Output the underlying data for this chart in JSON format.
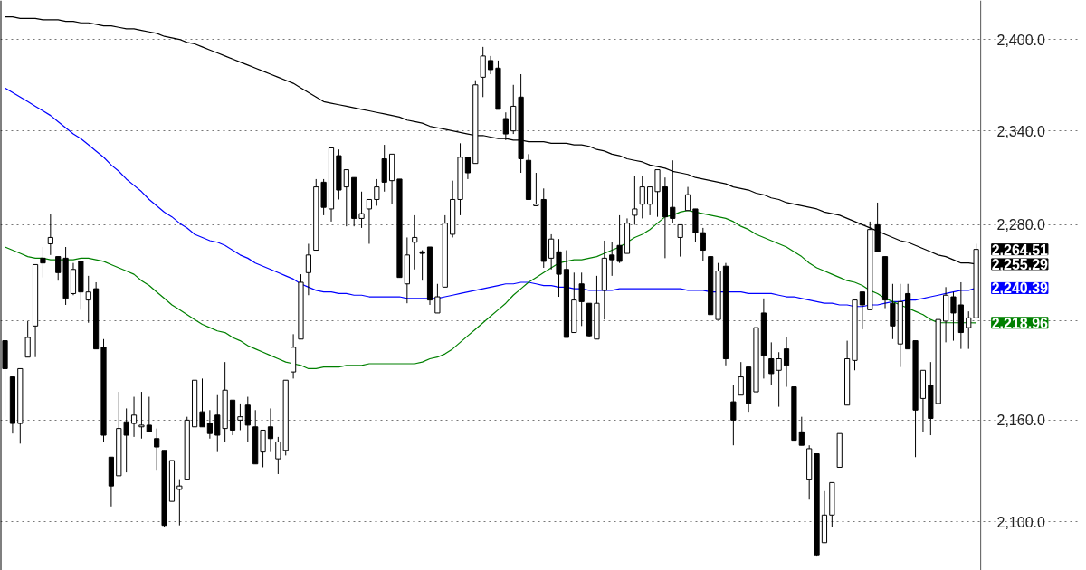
{
  "chart_data": {
    "type": "candlestick",
    "categories": [
      null,
      null,
      null,
      null,
      null,
      null,
      null,
      null,
      null,
      null,
      null,
      null,
      null,
      null,
      null,
      null,
      null,
      null,
      null,
      null,
      null,
      null,
      null,
      null,
      null,
      null,
      null,
      null,
      null,
      null,
      null,
      null,
      null,
      null,
      null,
      null,
      null,
      null,
      null,
      null,
      null,
      null,
      null,
      null,
      null,
      null,
      null,
      null,
      null,
      null,
      null,
      null,
      null,
      null,
      null,
      null,
      null,
      null,
      null,
      null,
      null,
      null,
      null,
      null,
      null,
      null,
      null,
      null,
      null,
      null,
      null,
      null,
      null,
      null,
      null,
      null,
      null,
      null,
      null,
      null,
      null,
      null,
      null,
      null,
      null,
      null,
      null,
      null,
      null,
      null,
      null,
      null,
      null,
      null,
      null,
      null,
      null,
      null,
      null,
      null,
      null,
      null,
      null,
      null,
      null,
      null,
      null,
      null,
      null,
      null,
      null,
      null,
      null,
      null,
      null,
      null,
      null,
      null,
      null,
      null,
      null,
      null,
      null,
      null,
      null,
      null,
      null,
      null,
      null
    ],
    "ohlc": [
      [
        2208,
        2208,
        2162,
        2191
      ],
      [
        2186,
        2186,
        2152,
        2158
      ],
      [
        2158,
        2191,
        2146,
        2191
      ],
      [
        2198,
        2220,
        2198,
        2210
      ],
      [
        2217,
        2255,
        2198,
        2255
      ],
      [
        2259,
        2266,
        2247,
        2256
      ],
      [
        2268,
        2287,
        2261,
        2272
      ],
      [
        2260,
        2260,
        2245,
        2250
      ],
      [
        2259,
        2266,
        2230,
        2234
      ],
      [
        2237,
        2256,
        2236,
        2252
      ],
      [
        2257,
        2257,
        2227,
        2238
      ],
      [
        2233,
        2248,
        2219,
        2238
      ],
      [
        2240,
        2244,
        2203,
        2203
      ],
      [
        2204,
        2209,
        2147,
        2151
      ],
      [
        2138,
        2138,
        2109,
        2121
      ],
      [
        2127,
        2177,
        2127,
        2155
      ],
      [
        2159,
        2167,
        2129,
        2151
      ],
      [
        2158,
        2174,
        2150,
        2163
      ],
      [
        2156,
        2177,
        2149,
        2157
      ],
      [
        2157,
        2174,
        2153,
        2153
      ],
      [
        2149,
        2155,
        2130,
        2144
      ],
      [
        2142,
        2142,
        2097,
        2098
      ],
      [
        2112,
        2136,
        2112,
        2136
      ],
      [
        2119,
        2125,
        2098,
        2121
      ],
      [
        2125,
        2162,
        2125,
        2160
      ],
      [
        2156,
        2184,
        2156,
        2184
      ],
      [
        2165,
        2185,
        2156,
        2156
      ],
      [
        2158,
        2166,
        2149,
        2152
      ],
      [
        2163,
        2175,
        2141,
        2151
      ],
      [
        2155,
        2195,
        2147,
        2178
      ],
      [
        2172,
        2172,
        2151,
        2154
      ],
      [
        2160,
        2170,
        2154,
        2162
      ],
      [
        2169,
        2174,
        2147,
        2157
      ],
      [
        2156,
        2166,
        2134,
        2134
      ],
      [
        2141,
        2154,
        2132,
        2154
      ],
      [
        2156,
        2167,
        2141,
        2149
      ],
      [
        2137,
        2150,
        2128,
        2147
      ],
      [
        2142,
        2184,
        2139,
        2184
      ],
      [
        2189,
        2212,
        2185,
        2204
      ],
      [
        2209,
        2249,
        2209,
        2244
      ],
      [
        2250,
        2268,
        2236,
        2261
      ],
      [
        2264,
        2309,
        2264,
        2304
      ],
      [
        2307,
        2309,
        2286,
        2291
      ],
      [
        2290,
        2329,
        2282,
        2329
      ],
      [
        2324,
        2328,
        2296,
        2302
      ],
      [
        2304,
        2315,
        2279,
        2315
      ],
      [
        2310,
        2310,
        2279,
        2284
      ],
      [
        2284,
        2301,
        2278,
        2287
      ],
      [
        2290,
        2296,
        2268,
        2296
      ],
      [
        2296,
        2309,
        2292,
        2304
      ],
      [
        2322,
        2331,
        2301,
        2307
      ],
      [
        2308,
        2325,
        2293,
        2325
      ],
      [
        2309,
        2309,
        2247,
        2247
      ],
      [
        2243,
        2272,
        2231,
        2261
      ],
      [
        2269,
        2286,
        2252,
        2272
      ],
      [
        2263,
        2264,
        2245,
        2262
      ],
      [
        2266,
        2266,
        2230,
        2233
      ],
      [
        2225,
        2243,
        2225,
        2235
      ],
      [
        2241,
        2286,
        2241,
        2281
      ],
      [
        2274,
        2308,
        2272,
        2296
      ],
      [
        2296,
        2332,
        2286,
        2323
      ],
      [
        2323,
        2323,
        2309,
        2313
      ],
      [
        2319,
        2373,
        2319,
        2370
      ],
      [
        2375,
        2395,
        2362,
        2389
      ],
      [
        2386,
        2389,
        2377,
        2380
      ],
      [
        2381,
        2386,
        2354,
        2354
      ],
      [
        2348,
        2352,
        2334,
        2338
      ],
      [
        2340,
        2370,
        2338,
        2356
      ],
      [
        2362,
        2377,
        2313,
        2322
      ],
      [
        2321,
        2325,
        2296,
        2296
      ],
      [
        2292,
        2313,
        2292,
        2293
      ],
      [
        2296,
        2303,
        2253,
        2257
      ],
      [
        2259,
        2274,
        2252,
        2271
      ],
      [
        2263,
        2271,
        2235,
        2249
      ],
      [
        2252,
        2264,
        2210,
        2210
      ],
      [
        2213,
        2250,
        2213,
        2233
      ],
      [
        2243,
        2250,
        2217,
        2232
      ],
      [
        2231,
        2231,
        2210,
        2211
      ],
      [
        2209,
        2248,
        2209,
        2231
      ],
      [
        2239,
        2270,
        2221,
        2259
      ],
      [
        2261,
        2269,
        2248,
        2258
      ],
      [
        2267,
        2286,
        2256,
        2257
      ],
      [
        2262,
        2284,
        2262,
        2281
      ],
      [
        2286,
        2311,
        2280,
        2290
      ],
      [
        2293,
        2311,
        2284,
        2304
      ],
      [
        2293,
        2304,
        2286,
        2304
      ],
      [
        2301,
        2315,
        2285,
        2315
      ],
      [
        2304,
        2310,
        2259,
        2285
      ],
      [
        2291,
        2321,
        2281,
        2284
      ],
      [
        2272,
        2280,
        2260,
        2280
      ],
      [
        2289,
        2304,
        2289,
        2299
      ],
      [
        2290,
        2290,
        2269,
        2275
      ],
      [
        2275,
        2278,
        2257,
        2264
      ],
      [
        2260,
        2260,
        2224,
        2224
      ],
      [
        2221,
        2256,
        2221,
        2251
      ],
      [
        2254,
        2256,
        2193,
        2197
      ],
      [
        2171,
        2181,
        2145,
        2160
      ],
      [
        2175,
        2195,
        2175,
        2186
      ],
      [
        2192,
        2192,
        2165,
        2170
      ],
      [
        2177,
        2216,
        2177,
        2216
      ],
      [
        2225,
        2234,
        2185,
        2199
      ],
      [
        2197,
        2207,
        2181,
        2188
      ],
      [
        2190,
        2201,
        2168,
        2197
      ],
      [
        2203,
        2210,
        2180,
        2193
      ],
      [
        2180,
        2180,
        2148,
        2148
      ],
      [
        2153,
        2162,
        2145,
        2145
      ],
      [
        2125,
        2145,
        2113,
        2143
      ],
      [
        2140,
        2140,
        2080,
        2081
      ],
      [
        2088,
        2118,
        2088,
        2104
      ],
      [
        2104,
        2123,
        2097,
        2123
      ],
      [
        2132,
        2152,
        2132,
        2152
      ],
      [
        2169,
        2208,
        2169,
        2197
      ],
      [
        2196,
        2233,
        2190,
        2233
      ],
      [
        2238,
        2238,
        2215,
        2230
      ],
      [
        2227,
        2282,
        2227,
        2277
      ],
      [
        2280,
        2294,
        2263,
        2263
      ],
      [
        2260,
        2260,
        2228,
        2233
      ],
      [
        2231,
        2243,
        2209,
        2217
      ],
      [
        2206,
        2243,
        2192,
        2232
      ],
      [
        2237,
        2243,
        2203,
        2203
      ],
      [
        2208,
        2208,
        2138,
        2166
      ],
      [
        2173,
        2190,
        2153,
        2190
      ],
      [
        2181,
        2195,
        2151,
        2161
      ],
      [
        2170,
        2221,
        2170,
        2221
      ],
      [
        2220,
        2241,
        2207,
        2236
      ],
      [
        2235,
        2238,
        2208,
        2225
      ],
      [
        2230,
        2244,
        2203,
        2213
      ],
      [
        2216,
        2226,
        2203,
        2222
      ],
      [
        2222,
        2268,
        2222,
        2264.51
      ]
    ],
    "value_labels": [
      null,
      null,
      null,
      null,
      null,
      null,
      null,
      null,
      null,
      null,
      null,
      null,
      null,
      null,
      null,
      null,
      null,
      null,
      null,
      null,
      null,
      null,
      null,
      null,
      null,
      null,
      null,
      null,
      null,
      null,
      null,
      null,
      null,
      null,
      null,
      null,
      null,
      null,
      null,
      null,
      null,
      null,
      null,
      null,
      null,
      null,
      null,
      null,
      null,
      null,
      null,
      null,
      null,
      null,
      null,
      null,
      null,
      null,
      null,
      null,
      null,
      null,
      null,
      null,
      null,
      null,
      null,
      null,
      null,
      null,
      null,
      null,
      null,
      null,
      null,
      null,
      null,
      null,
      null,
      null,
      null,
      null,
      null,
      null,
      null,
      null,
      null,
      null,
      null,
      null,
      null,
      null,
      null,
      null,
      null,
      null,
      null,
      null,
      null,
      null,
      null,
      null,
      null,
      null,
      null,
      null,
      null,
      null,
      null,
      null,
      null,
      null,
      null,
      null,
      null,
      null,
      null,
      null,
      null,
      null,
      null,
      null,
      null,
      null,
      null,
      null,
      null,
      null,
      "2,264.51"
    ],
    "series": [
      {
        "type": "line",
        "color": "#000000",
        "values": [
          2415,
          2415,
          2414,
          2414,
          2414,
          2413,
          2413,
          2413,
          2412,
          2412,
          2411,
          2411,
          2410,
          2409,
          2409,
          2408,
          2407,
          2407,
          2406,
          2405,
          2404,
          2402,
          2401,
          2400,
          2398,
          2397,
          2395,
          2393,
          2391,
          2389,
          2387,
          2385,
          2383,
          2381,
          2379,
          2377,
          2375,
          2373,
          2371,
          2368,
          2365,
          2362,
          2359,
          2358,
          2357,
          2356,
          2355,
          2354,
          2353,
          2352,
          2351,
          2350,
          2349,
          2347,
          2346,
          2345,
          2343,
          2342,
          2341,
          2340,
          2339,
          2338,
          2337,
          2337,
          2336,
          2335,
          2335,
          2334,
          2334,
          2333,
          2333,
          2333,
          2332,
          2332,
          2332,
          2331,
          2331,
          2330,
          2328,
          2327,
          2325,
          2324,
          2322,
          2321,
          2320,
          2318,
          2317,
          2316,
          2314,
          2313,
          2312,
          2310,
          2309,
          2308,
          2307,
          2306,
          2304,
          2303,
          2302,
          2300,
          2299,
          2297,
          2296,
          2294,
          2293,
          2292,
          2291,
          2290,
          2288,
          2287,
          2286,
          2284,
          2282,
          2280,
          2278,
          2276,
          2274,
          2272,
          2270,
          2269,
          2267,
          2265,
          2263,
          2261,
          2260,
          2258,
          2256,
          2256,
          2255.29
        ],
        "value_labels": [
          null,
          null,
          null,
          null,
          null,
          null,
          null,
          null,
          null,
          null,
          null,
          null,
          null,
          null,
          null,
          null,
          null,
          null,
          null,
          null,
          null,
          null,
          null,
          null,
          null,
          null,
          null,
          null,
          null,
          null,
          null,
          null,
          null,
          null,
          null,
          null,
          null,
          null,
          null,
          null,
          null,
          null,
          null,
          null,
          null,
          null,
          null,
          null,
          null,
          null,
          null,
          null,
          null,
          null,
          null,
          null,
          null,
          null,
          null,
          null,
          null,
          null,
          null,
          null,
          null,
          null,
          null,
          null,
          null,
          null,
          null,
          null,
          null,
          null,
          null,
          null,
          null,
          null,
          null,
          null,
          null,
          null,
          null,
          null,
          null,
          null,
          null,
          null,
          null,
          null,
          null,
          null,
          null,
          null,
          null,
          null,
          null,
          null,
          null,
          null,
          null,
          null,
          null,
          null,
          null,
          null,
          null,
          null,
          null,
          null,
          null,
          null,
          null,
          null,
          null,
          null,
          null,
          null,
          null,
          null,
          null,
          null,
          null,
          null,
          null,
          null,
          null,
          null,
          "2,255.29"
        ]
      },
      {
        "type": "line",
        "color": "#0000ff",
        "values": [
          2368,
          2365,
          2362,
          2359,
          2356,
          2353,
          2350,
          2346,
          2342,
          2338,
          2335,
          2331,
          2327,
          2323,
          2318,
          2314,
          2309,
          2305,
          2301,
          2296,
          2292,
          2288,
          2285,
          2281,
          2278,
          2274,
          2272,
          2270,
          2269,
          2267,
          2264,
          2261,
          2259,
          2256,
          2254,
          2252,
          2250,
          2248,
          2246,
          2243,
          2241,
          2239,
          2238,
          2238,
          2237,
          2237,
          2236,
          2236,
          2235,
          2235,
          2235,
          2235,
          2235,
          2234,
          2234,
          2234,
          2234,
          2234,
          2235,
          2236,
          2237,
          2238,
          2239,
          2240,
          2241,
          2242,
          2243,
          2243,
          2244,
          2244,
          2243,
          2242,
          2242,
          2241,
          2241,
          2240,
          2240,
          2239,
          2239,
          2239,
          2239,
          2240,
          2240,
          2240,
          2240,
          2240,
          2240,
          2240,
          2240,
          2240,
          2239,
          2239,
          2239,
          2238,
          2238,
          2238,
          2238,
          2238,
          2237,
          2237,
          2237,
          2237,
          2236,
          2235,
          2235,
          2234,
          2233,
          2232,
          2231,
          2231,
          2230,
          2230,
          2229,
          2229,
          2230,
          2230,
          2231,
          2232,
          2232,
          2233,
          2233,
          2234,
          2235,
          2236,
          2237,
          2238,
          2239,
          2239,
          2240.39
        ],
        "value_labels": [
          null,
          null,
          null,
          null,
          null,
          null,
          null,
          null,
          null,
          null,
          null,
          null,
          null,
          null,
          null,
          null,
          null,
          null,
          null,
          null,
          null,
          null,
          null,
          null,
          null,
          null,
          null,
          null,
          null,
          null,
          null,
          null,
          null,
          null,
          null,
          null,
          null,
          null,
          null,
          null,
          null,
          null,
          null,
          null,
          null,
          null,
          null,
          null,
          null,
          null,
          null,
          null,
          null,
          null,
          null,
          null,
          null,
          null,
          null,
          null,
          null,
          null,
          null,
          null,
          null,
          null,
          null,
          null,
          null,
          null,
          null,
          null,
          null,
          null,
          null,
          null,
          null,
          null,
          null,
          null,
          null,
          null,
          null,
          null,
          null,
          null,
          null,
          null,
          null,
          null,
          null,
          null,
          null,
          null,
          null,
          null,
          null,
          null,
          null,
          null,
          null,
          null,
          null,
          null,
          null,
          null,
          null,
          null,
          null,
          null,
          null,
          null,
          null,
          null,
          null,
          null,
          null,
          null,
          null,
          null,
          null,
          null,
          null,
          null,
          null,
          null,
          null,
          null,
          "2,240.39"
        ]
      },
      {
        "type": "line",
        "color": "#008000",
        "values": [
          2266,
          2264,
          2262,
          2260,
          2259,
          2259,
          2258,
          2258,
          2258,
          2258,
          2259,
          2259,
          2258,
          2257,
          2255,
          2253,
          2251,
          2249,
          2245,
          2242,
          2238,
          2234,
          2230,
          2227,
          2224,
          2221,
          2218,
          2216,
          2214,
          2213,
          2210,
          2208,
          2205,
          2203,
          2201,
          2199,
          2197,
          2195,
          2194,
          2193,
          2191,
          2191,
          2192,
          2192,
          2192,
          2193,
          2193,
          2193,
          2194,
          2194,
          2194,
          2194,
          2194,
          2194,
          2194,
          2195,
          2197,
          2198,
          2200,
          2203,
          2207,
          2211,
          2215,
          2219,
          2223,
          2227,
          2231,
          2236,
          2240,
          2244,
          2247,
          2250,
          2253,
          2256,
          2257,
          2258,
          2258,
          2259,
          2260,
          2262,
          2264,
          2266,
          2269,
          2272,
          2274,
          2277,
          2281,
          2285,
          2286,
          2288,
          2289,
          2288,
          2287,
          2286,
          2285,
          2284,
          2282,
          2279,
          2277,
          2274,
          2272,
          2270,
          2268,
          2266,
          2263,
          2260,
          2256,
          2253,
          2251,
          2249,
          2247,
          2245,
          2244,
          2242,
          2239,
          2237,
          2234,
          2232,
          2230,
          2228,
          2226,
          2224,
          2221,
          2219,
          2219,
          2219,
          2219,
          2219,
          2218.96
        ],
        "value_labels": [
          null,
          null,
          null,
          null,
          null,
          null,
          null,
          null,
          null,
          null,
          null,
          null,
          null,
          null,
          null,
          null,
          null,
          null,
          null,
          null,
          null,
          null,
          null,
          null,
          null,
          null,
          null,
          null,
          null,
          null,
          null,
          null,
          null,
          null,
          null,
          null,
          null,
          null,
          null,
          null,
          null,
          null,
          null,
          null,
          null,
          null,
          null,
          null,
          null,
          null,
          null,
          null,
          null,
          null,
          null,
          null,
          null,
          null,
          null,
          null,
          null,
          null,
          null,
          null,
          null,
          null,
          null,
          null,
          null,
          null,
          null,
          null,
          null,
          null,
          null,
          null,
          null,
          null,
          null,
          null,
          null,
          null,
          null,
          null,
          null,
          null,
          null,
          null,
          null,
          null,
          null,
          null,
          null,
          null,
          null,
          null,
          null,
          null,
          null,
          null,
          null,
          null,
          null,
          null,
          null,
          null,
          null,
          null,
          null,
          null,
          null,
          null,
          null,
          null,
          null,
          null,
          null,
          null,
          null,
          null,
          null,
          null,
          null,
          null,
          null,
          null,
          null,
          null,
          "2,218.96"
        ]
      }
    ],
    "log": "y",
    "ylim": [
      2072,
      2426
    ],
    "yticks": [
      {
        "value": 2100,
        "label": "2,100.0"
      },
      {
        "value": 2160,
        "label": "2,160.0"
      },
      {
        "value": 2220,
        "label": null
      },
      {
        "value": 2280,
        "label": "2,280.0"
      },
      {
        "value": 2340,
        "label": "2,340.0"
      },
      {
        "value": 2400,
        "label": "2,400.0"
      }
    ],
    "grid": "y",
    "tick_labels": "y"
  }
}
